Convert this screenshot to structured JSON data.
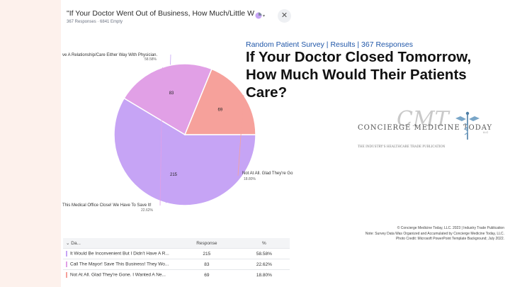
{
  "card": {
    "title": "\"If Your Doctor Went Out of Business, How Much/Little Woul...",
    "subtitle": "367 Responses · 6841 Empty",
    "close_symbol": "✕"
  },
  "slide": {
    "kicker": "Random Patient Survey | Results | 367 Responses",
    "headline": "If Your Doctor Closed Tomorrow, How Much Would Their Patients Care?",
    "logo": {
      "name": "CONCIERGE MEDICINE TODAY",
      "tagline": "THE INDUSTRY'S HEALTHCARE TRADE PUBLICATION",
      "mark": "CMT",
      "small": "LLC"
    },
    "footer": [
      "© Concierge Medicine Today, LLC. 2023 | Industry Trade Publication",
      "Note: Survey Data Was Organized and Accumulated by Concierge Medicine Today, LLC.",
      "Photo Credit: Microsoft PowerPoint Template Background; July 2022."
    ]
  },
  "table": {
    "headers": [
      "Da...",
      "Response",
      "%"
    ],
    "rows": [
      {
        "label": "It Would Be Inconvenient But I Didn't Have A R...",
        "response": "215",
        "pct": "58.58%",
        "color": "#c6a4f5"
      },
      {
        "label": "Call The Mayor! Save This Business! They Wo...",
        "response": "83",
        "pct": "22.62%",
        "color": "#e1a0e6"
      },
      {
        "label": "Not At All. Glad They're Gone. I Wanted A Ne...",
        "response": "69",
        "pct": "18.80%",
        "color": "#f6a19b"
      }
    ]
  },
  "chart_data": {
    "type": "pie",
    "categories": [
      "ve A Relationship/Care Either Way With Physician.",
      "This Medical Office Close! We Have To Save It!",
      "Not At All. Glad They're Go"
    ],
    "values": [
      215,
      83,
      69
    ],
    "percent_labels": [
      "58.58%",
      "22.62%",
      "18.80%"
    ],
    "colors": [
      "#c6a4f5",
      "#e1a0e6",
      "#f6a19b"
    ],
    "legend": "none"
  }
}
